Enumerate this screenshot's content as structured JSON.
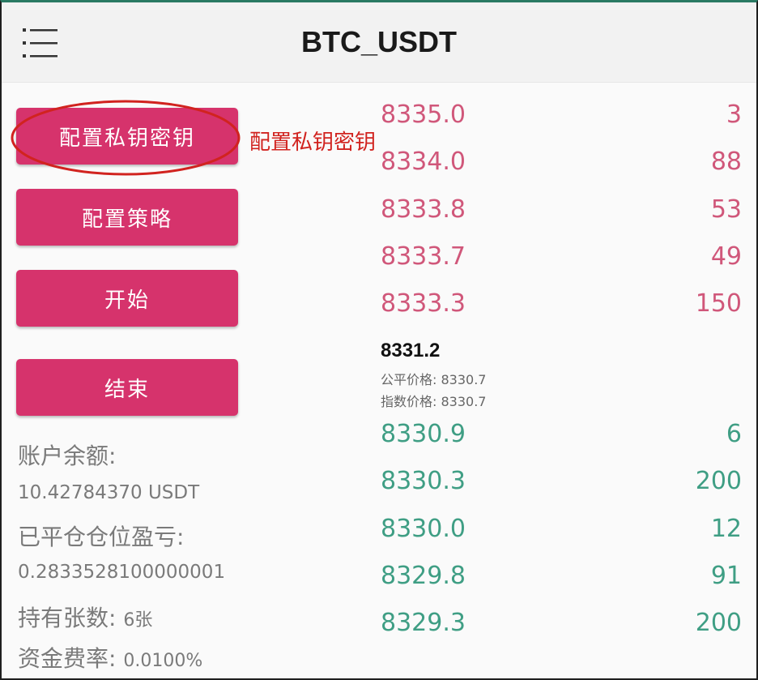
{
  "header": {
    "title": "BTC_USDT",
    "menu_icon": "hamburger-list-icon"
  },
  "actions": {
    "config_keys": "配置私钥密钥",
    "config_strategy": "配置策略",
    "start": "开始",
    "end": "结束"
  },
  "annotation": {
    "label": "配置私钥密钥",
    "color": "#d1231f"
  },
  "account": {
    "balance_label": "账户余额:",
    "balance_value": "10.42784370 USDT",
    "closed_pnl_label": "已平仓仓位盈亏:",
    "closed_pnl_value": "0.2833528100000001",
    "holdings_label": "持有张数:",
    "holdings_value": "6张",
    "funding_label": "资金费率:",
    "funding_value": "0.0100%"
  },
  "orderbook": {
    "asks": [
      {
        "price": "8335.0",
        "qty": "3"
      },
      {
        "price": "8334.0",
        "qty": "88"
      },
      {
        "price": "8333.8",
        "qty": "53"
      },
      {
        "price": "8333.7",
        "qty": "49"
      },
      {
        "price": "8333.3",
        "qty": "150"
      }
    ],
    "last_price": "8331.2",
    "fair_price": "公平价格: 8330.7",
    "index_price": "指数价格: 8330.7",
    "bids": [
      {
        "price": "8330.9",
        "qty": "6"
      },
      {
        "price": "8330.3",
        "qty": "200"
      },
      {
        "price": "8330.0",
        "qty": "12"
      },
      {
        "price": "8329.8",
        "qty": "91"
      },
      {
        "price": "8329.3",
        "qty": "200"
      }
    ]
  },
  "colors": {
    "button": "#d6336c",
    "ask": "#d0577a",
    "bid": "#3f9e84",
    "header_accent": "#2a7a63"
  }
}
